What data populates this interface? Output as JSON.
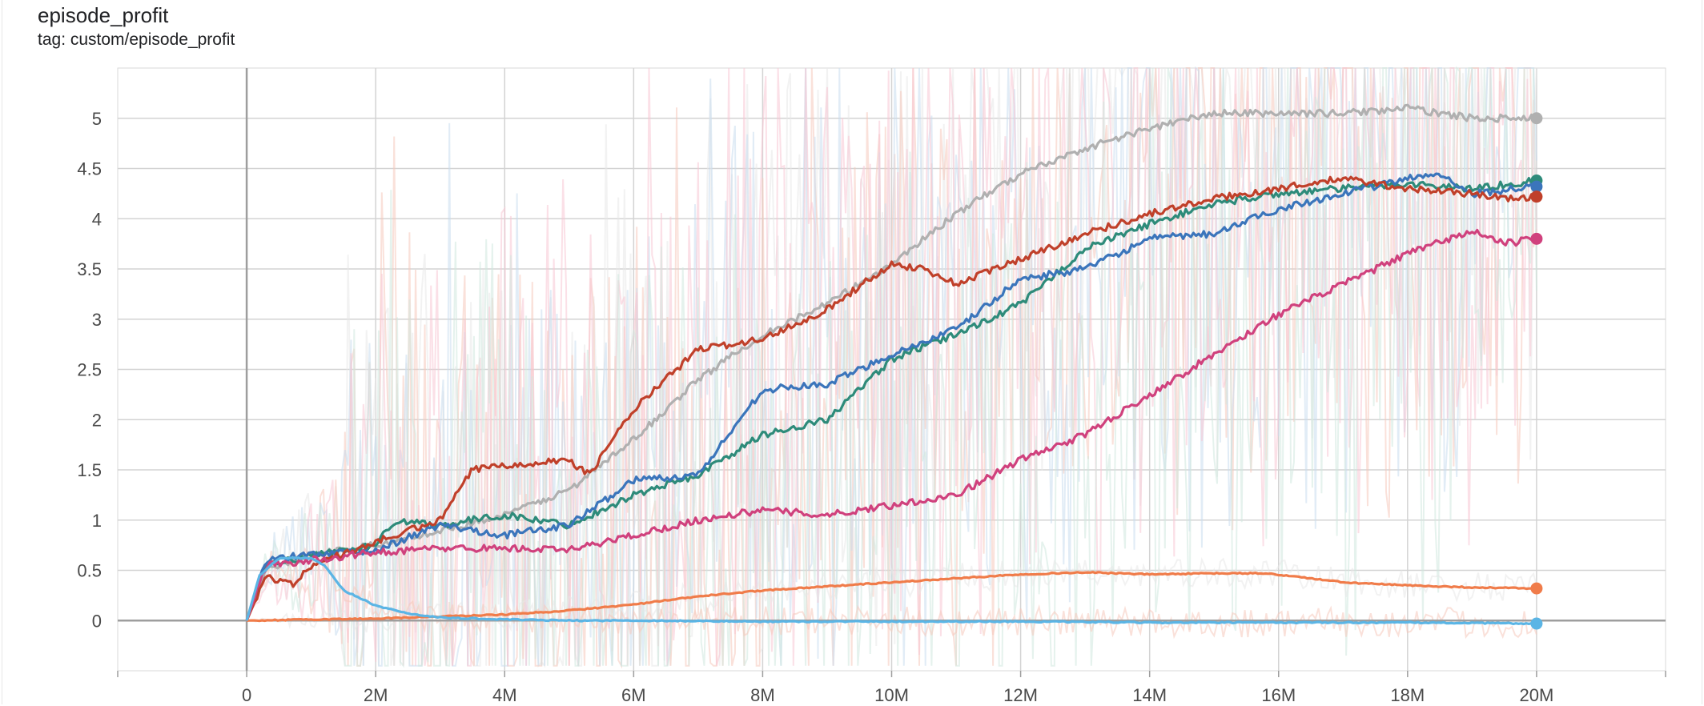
{
  "card": {
    "title": "episode_profit",
    "tag": "tag: custom/episode_profit"
  },
  "chart_data": {
    "type": "line",
    "title": "episode_profit",
    "subtitle": "tag: custom/episode_profit",
    "xlabel": "",
    "ylabel": "",
    "xlim": [
      -2000000,
      22000000
    ],
    "ylim": [
      -0.5,
      5.5
    ],
    "x_ticks": [
      0,
      2000000,
      4000000,
      6000000,
      8000000,
      10000000,
      12000000,
      14000000,
      16000000,
      18000000,
      20000000
    ],
    "x_tick_labels": [
      "0",
      "2M",
      "4M",
      "6M",
      "8M",
      "10M",
      "12M",
      "14M",
      "16M",
      "18M",
      "20M"
    ],
    "y_ticks": [
      0,
      0.5,
      1,
      1.5,
      2,
      2.5,
      3,
      3.5,
      4,
      4.5,
      5
    ],
    "y_tick_labels": [
      "0",
      "0.5",
      "1",
      "1.5",
      "2",
      "2.5",
      "3",
      "3.5",
      "4",
      "4.5",
      "5"
    ],
    "grid": true,
    "smoothed": true,
    "series": [
      {
        "color": "#b0b0b0",
        "x": [
          0,
          300000,
          1000000,
          2000000,
          3000000,
          4000000,
          5000000,
          6000000,
          7000000,
          8000000,
          9000000,
          10000000,
          11000000,
          12000000,
          13000000,
          14000000,
          15000000,
          16000000,
          17000000,
          18000000,
          19000000,
          20000000
        ],
        "y": [
          0,
          0.5,
          0.65,
          0.75,
          0.9,
          1.05,
          1.3,
          1.8,
          2.4,
          2.85,
          3.15,
          3.55,
          4.05,
          4.45,
          4.7,
          4.9,
          5.05,
          5.05,
          5.05,
          5.1,
          5.0,
          5.0
        ],
        "final": 5.0
      },
      {
        "color": "#2e8b7a",
        "x": [
          0,
          300000,
          1000000,
          2000000,
          2300000,
          3000000,
          4000000,
          5000000,
          6000000,
          7000000,
          8000000,
          9000000,
          10000000,
          11000000,
          12000000,
          13000000,
          14000000,
          15000000,
          16000000,
          17000000,
          18000000,
          19000000,
          20000000
        ],
        "y": [
          0,
          0.55,
          0.65,
          0.75,
          1.0,
          0.95,
          1.05,
          0.95,
          1.25,
          1.45,
          1.85,
          2.0,
          2.6,
          2.85,
          3.15,
          3.7,
          3.95,
          4.15,
          4.25,
          4.3,
          4.35,
          4.3,
          4.38
        ],
        "final": 4.38
      },
      {
        "color": "#3b75bb",
        "x": [
          0,
          300000,
          1000000,
          2000000,
          3000000,
          4000000,
          5000000,
          6000000,
          7000000,
          8000000,
          9000000,
          10000000,
          11000000,
          12000000,
          13000000,
          14000000,
          15000000,
          16000000,
          17000000,
          18000000,
          18500000,
          19000000,
          20000000
        ],
        "y": [
          0,
          0.6,
          0.66,
          0.7,
          0.95,
          0.85,
          0.95,
          1.4,
          1.45,
          2.3,
          2.35,
          2.65,
          2.9,
          3.4,
          3.5,
          3.8,
          3.85,
          4.1,
          4.25,
          4.4,
          4.45,
          4.25,
          4.32
        ],
        "final": 4.32
      },
      {
        "color": "#c0402a",
        "x": [
          0,
          300000,
          700000,
          1000000,
          2000000,
          3000000,
          3500000,
          4000000,
          5000000,
          5300000,
          6000000,
          7000000,
          8000000,
          9000000,
          10000000,
          10500000,
          11000000,
          12000000,
          13000000,
          14000000,
          15000000,
          16000000,
          17000000,
          18000000,
          19000000,
          19500000,
          20000000
        ],
        "y": [
          0,
          0.45,
          0.35,
          0.55,
          0.78,
          1.0,
          1.5,
          1.55,
          1.6,
          1.45,
          2.1,
          2.7,
          2.8,
          3.1,
          3.55,
          3.5,
          3.35,
          3.6,
          3.85,
          4.05,
          4.2,
          4.3,
          4.4,
          4.3,
          4.25,
          4.2,
          4.22
        ],
        "final": 4.22
      },
      {
        "color": "#d0417d",
        "x": [
          0,
          300000,
          1000000,
          2000000,
          3000000,
          4000000,
          5000000,
          6000000,
          7000000,
          8000000,
          9000000,
          10000000,
          11000000,
          12000000,
          13000000,
          14000000,
          15000000,
          16000000,
          17000000,
          18000000,
          19000000,
          19500000,
          20000000
        ],
        "y": [
          0,
          0.55,
          0.6,
          0.68,
          0.72,
          0.72,
          0.7,
          0.85,
          1.0,
          1.1,
          1.05,
          1.15,
          1.25,
          1.6,
          1.85,
          2.25,
          2.65,
          3.05,
          3.35,
          3.65,
          3.88,
          3.75,
          3.8
        ],
        "final": 3.8
      },
      {
        "color": "#f07c4a",
        "x": [
          0,
          1000000,
          2000000,
          3000000,
          4000000,
          5000000,
          6000000,
          7000000,
          8000000,
          9000000,
          10000000,
          11000000,
          12000000,
          13000000,
          14000000,
          15000000,
          15800000,
          16500000,
          17000000,
          18000000,
          19000000,
          20000000
        ],
        "y": [
          0,
          0.01,
          0.02,
          0.04,
          0.06,
          0.1,
          0.16,
          0.24,
          0.3,
          0.34,
          0.38,
          0.42,
          0.46,
          0.48,
          0.46,
          0.47,
          0.47,
          0.42,
          0.38,
          0.35,
          0.33,
          0.32
        ],
        "final": 0.32
      },
      {
        "color": "#5bb5e5",
        "x": [
          0,
          200000,
          500000,
          1000000,
          1200000,
          1500000,
          2000000,
          2500000,
          3000000,
          4000000,
          5000000,
          6000000,
          8000000,
          10000000,
          12000000,
          14000000,
          16000000,
          18000000,
          20000000
        ],
        "y": [
          0,
          0.45,
          0.62,
          0.62,
          0.55,
          0.3,
          0.15,
          0.07,
          0.03,
          0.01,
          0.0,
          0.0,
          -0.01,
          -0.01,
          -0.01,
          -0.02,
          -0.02,
          -0.02,
          -0.03
        ],
        "final": -0.03
      }
    ],
    "raw_noise_series_colors": [
      "#e8e8e8",
      "#f6c9bb",
      "#c9dcee",
      "#f8c6d3",
      "#cfe7de"
    ]
  }
}
